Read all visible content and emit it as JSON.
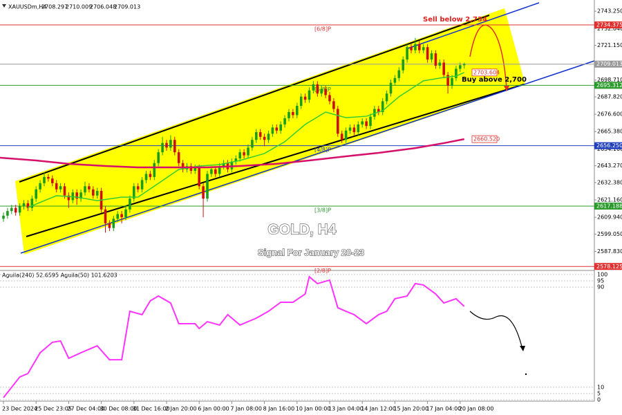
{
  "chart_data": [
    {
      "type": "candlestick",
      "symbol": "XAUUSDm,H4",
      "title": "GOLD, H4",
      "subtitle": "Signal For January 20-23",
      "annotations": {
        "sell": "Sell below 2,734",
        "buy": "Buy above 2,700"
      },
      "up_color": "#1a9e1a",
      "down_color": "#cc1010",
      "categories": [
        "23 Dec 2024",
        null,
        null,
        null,
        null,
        null,
        null,
        null,
        "25 Dec 23:05",
        null,
        null,
        null,
        null,
        null,
        null,
        null,
        "27 Dec 04:00",
        null,
        null,
        null,
        null,
        null,
        null,
        null,
        "30 Dec 08:00",
        null,
        null,
        null,
        null,
        null,
        null,
        null,
        "31 Dec 16:00",
        null,
        null,
        null,
        null,
        null,
        null,
        null,
        "2 Jan 20:00",
        null,
        null,
        null,
        null,
        null,
        null,
        null,
        "6 Jan 00:00",
        null,
        null,
        null,
        null,
        null,
        null,
        null,
        "7 Jan 08:00",
        null,
        null,
        null,
        null,
        null,
        null,
        null,
        "8 Jan 16:00",
        null,
        null,
        null,
        null,
        null,
        null,
        null,
        "10 Jan 00:00",
        null,
        null,
        null,
        null,
        null,
        null,
        null,
        "13 Jan 04:00",
        null,
        null,
        null,
        null,
        null,
        null,
        null,
        "14 Jan 12:00",
        null,
        null,
        null,
        null,
        null,
        null,
        null,
        "15 Jan 20:00",
        null,
        null,
        null,
        null,
        null,
        null,
        null,
        "17 Jan 04:00",
        null,
        null,
        null,
        null,
        null,
        null,
        null,
        "20 Jan 08:00",
        null
      ],
      "open": [
        2609,
        2611,
        2614,
        2616,
        2613,
        2617,
        2619,
        2616,
        2622,
        2628,
        2632,
        2636,
        2635,
        2632,
        2628,
        2630,
        2624,
        2621,
        2626,
        2622,
        2626,
        2630,
        2628,
        2624,
        2627,
        2615,
        2606,
        2603,
        2609,
        2612,
        2610,
        2615,
        2622,
        2630,
        2628,
        2634,
        2638,
        2636,
        2645,
        2652,
        2658,
        2655,
        2660,
        2652,
        2645,
        2641,
        2643,
        2640,
        2642,
        2630,
        2622,
        2638,
        2641,
        2638,
        2643,
        2645,
        2641,
        2646,
        2648,
        2652,
        2650,
        2655,
        2660,
        2665,
        2662,
        2660,
        2664,
        2668,
        2666,
        2670,
        2674,
        2678,
        2676,
        2682,
        2688,
        2686,
        2692,
        2696,
        2690,
        2693,
        2689,
        2685,
        2680,
        2664,
        2660,
        2666,
        2668,
        2665,
        2670,
        2672,
        2669,
        2675,
        2680,
        2678,
        2685,
        2690,
        2697,
        2700,
        2705,
        2712,
        2720,
        2718,
        2722,
        2718,
        2720,
        2712,
        2716,
        2708,
        2710,
        2702,
        2695,
        2700,
        2706,
        2708.297
      ],
      "high": [
        2613,
        2616,
        2618,
        2618,
        2619,
        2621,
        2621,
        2624,
        2630,
        2634,
        2639,
        2638,
        2637,
        2634,
        2632,
        2632,
        2626,
        2628,
        2628,
        2628,
        2633,
        2632,
        2630,
        2629,
        2629,
        2617,
        2608,
        2611,
        2614,
        2614,
        2617,
        2624,
        2632,
        2632,
        2636,
        2640,
        2640,
        2647,
        2654,
        2662,
        2660,
        2663,
        2662,
        2654,
        2647,
        2645,
        2645,
        2644,
        2644,
        2632,
        2640,
        2643,
        2643,
        2645,
        2647,
        2647,
        2648,
        2650,
        2654,
        2654,
        2657,
        2662,
        2667,
        2667,
        2664,
        2666,
        2670,
        2670,
        2672,
        2676,
        2680,
        2680,
        2684,
        2690,
        2690,
        2694,
        2698,
        2698,
        2695,
        2695,
        2691,
        2687,
        2682,
        2666,
        2668,
        2670,
        2670,
        2672,
        2674,
        2674,
        2677,
        2682,
        2682,
        2687,
        2692,
        2699,
        2702,
        2707,
        2714,
        2722,
        2722,
        2726,
        2724,
        2722,
        2722,
        2718,
        2718,
        2712,
        2712,
        2704,
        2702,
        2708,
        2710,
        2710.009
      ],
      "low": [
        2607,
        2609,
        2612,
        2611,
        2611,
        2615,
        2614,
        2614,
        2620,
        2626,
        2630,
        2633,
        2630,
        2626,
        2626,
        2622,
        2616,
        2619,
        2618,
        2620,
        2624,
        2626,
        2622,
        2622,
        2613,
        2600,
        2601,
        2601,
        2607,
        2606,
        2608,
        2613,
        2620,
        2626,
        2626,
        2632,
        2634,
        2634,
        2643,
        2650,
        2653,
        2653,
        2650,
        2643,
        2639,
        2639,
        2638,
        2638,
        2628,
        2610,
        2620,
        2636,
        2636,
        2636,
        2641,
        2639,
        2639,
        2644,
        2646,
        2648,
        2648,
        2653,
        2658,
        2660,
        2656,
        2658,
        2662,
        2664,
        2664,
        2668,
        2672,
        2674,
        2674,
        2680,
        2684,
        2684,
        2690,
        2688,
        2688,
        2687,
        2683,
        2678,
        2662,
        2658,
        2658,
        2664,
        2663,
        2663,
        2668,
        2667,
        2667,
        2673,
        2676,
        2676,
        2683,
        2688,
        2695,
        2698,
        2703,
        2710,
        2716,
        2716,
        2716,
        2716,
        2710,
        2710,
        2706,
        2706,
        2700,
        2690,
        2693,
        2698,
        2704,
        2706.048
      ],
      "close": [
        2611,
        2614,
        2616,
        2613,
        2617,
        2619,
        2616,
        2622,
        2628,
        2632,
        2636,
        2635,
        2632,
        2628,
        2630,
        2624,
        2621,
        2626,
        2622,
        2626,
        2630,
        2628,
        2624,
        2627,
        2615,
        2606,
        2603,
        2609,
        2612,
        2610,
        2615,
        2622,
        2630,
        2628,
        2634,
        2638,
        2636,
        2645,
        2652,
        2658,
        2655,
        2660,
        2652,
        2645,
        2641,
        2643,
        2640,
        2642,
        2630,
        2622,
        2638,
        2641,
        2638,
        2643,
        2645,
        2641,
        2646,
        2648,
        2652,
        2650,
        2655,
        2660,
        2665,
        2662,
        2660,
        2664,
        2668,
        2666,
        2670,
        2674,
        2678,
        2676,
        2682,
        2688,
        2686,
        2692,
        2696,
        2690,
        2693,
        2689,
        2685,
        2680,
        2664,
        2660,
        2666,
        2668,
        2665,
        2670,
        2672,
        2669,
        2675,
        2680,
        2678,
        2685,
        2690,
        2697,
        2700,
        2705,
        2712,
        2720,
        2718,
        2722,
        2718,
        2720,
        2712,
        2716,
        2708,
        2710,
        2702,
        2695,
        2700,
        2706,
        2708.297,
        2709.013
      ],
      "moving_averages": [
        {
          "color": "#33cc33",
          "end_label": "2703.604",
          "x": [
            6,
            13,
            18,
            23,
            29,
            33,
            38,
            43,
            48,
            53,
            58,
            64,
            69,
            74,
            79,
            84,
            89,
            93,
            97,
            103,
            108,
            111,
            113
          ],
          "values": [
            2616.3,
            2623.9,
            2623.0,
            2620.7,
            2623.0,
            2623.0,
            2631.9,
            2640.9,
            2643.1,
            2644.0,
            2646.7,
            2651.2,
            2658.8,
            2670.0,
            2678.0,
            2674.4,
            2675.3,
            2678.9,
            2687.9,
            2698.2,
            2700.4,
            2701.3,
            2703.604
          ]
        },
        {
          "color": "#d6106a",
          "end_label": "2660.520",
          "x": [
            -1,
            8,
            16,
            25,
            33,
            42,
            50,
            58,
            67,
            75,
            84,
            92,
            101,
            108,
            113
          ],
          "values": [
            2648.5,
            2646.7,
            2644.5,
            2643.1,
            2642.2,
            2642.2,
            2642.2,
            2643.1,
            2644.5,
            2646.7,
            2649.4,
            2651.6,
            2654.7,
            2657.9,
            2660.52
          ]
        }
      ],
      "levels": [
        {
          "value": 2734.375,
          "color": "#e03030",
          "murrey": "[6/8]P"
        },
        {
          "value": 2709.013,
          "color": "#9a9a9a"
        },
        {
          "value": 2695.312,
          "color": "#2a9a2a",
          "murrey": "[5/8]P"
        },
        {
          "value": 2656.25,
          "label": "2656.250",
          "color": "#2040c0",
          "murrey": "[4/8]P"
        },
        {
          "value": 2617.188,
          "color": "#2a9a2a",
          "murrey": "[3/8]P"
        },
        {
          "value": 2578.125,
          "color": "#e03030",
          "murrey": "[2/8]P"
        }
      ],
      "ylim": [
        2576,
        2750.5
      ],
      "yticks": [
        {
          "value": 2743.25,
          "label": "2743.250"
        },
        {
          "value": 2732.04,
          "label": "2732.040"
        },
        {
          "value": 2721.15,
          "label": "2721.150"
        },
        {
          "value": 2698.71,
          "label": "2698.710"
        },
        {
          "value": 2687.82,
          "label": "2687.820"
        },
        {
          "value": 2676.6,
          "label": "2676.600"
        },
        {
          "value": 2665.38,
          "label": "2665.380"
        },
        {
          "value": 2654.16,
          "label": "2654.160"
        },
        {
          "value": 2643.27,
          "label": "2643.270"
        },
        {
          "value": 2632.38,
          "label": "2632.380"
        },
        {
          "value": 2621.16,
          "label": "2621.160"
        },
        {
          "value": 2609.94,
          "label": "2609.940"
        },
        {
          "value": 2599.05,
          "label": "2599.050"
        },
        {
          "value": 2587.83,
          "label": "2587.830"
        }
      ]
    },
    {
      "type": "line",
      "label": "Aguila(240) 52.6595  Aguila(50) 101.6203",
      "color": "#ff33ff",
      "x": [
        0,
        4,
        6,
        9,
        12,
        14,
        16,
        19,
        23,
        26,
        29,
        31,
        34,
        36,
        38,
        41,
        43,
        47,
        48,
        50,
        53,
        55,
        58,
        62,
        65,
        68,
        71,
        74,
        75,
        77,
        80,
        82,
        84,
        86,
        89,
        92,
        94,
        96,
        99,
        101,
        103,
        106,
        108,
        111,
        113
      ],
      "values": [
        1.7,
        18.2,
        21.0,
        37.6,
        45.9,
        47.0,
        33.1,
        37.6,
        43.1,
        32.0,
        32.0,
        70.7,
        68.0,
        79.0,
        82.9,
        77.3,
        60.8,
        60.8,
        56.9,
        62.4,
        59.7,
        68.0,
        59.7,
        65.2,
        70.7,
        77.9,
        77.9,
        84.5,
        98.3,
        92.8,
        95.6,
        73.5,
        70.7,
        68.0,
        60.8,
        68.0,
        70.7,
        80.7,
        82.9,
        92.8,
        91.7,
        84.5,
        77.3,
        80.7,
        74.6
      ],
      "ylim": [
        0,
        100
      ],
      "yticks": [
        100,
        95,
        90,
        10,
        5,
        0
      ]
    }
  ]
}
